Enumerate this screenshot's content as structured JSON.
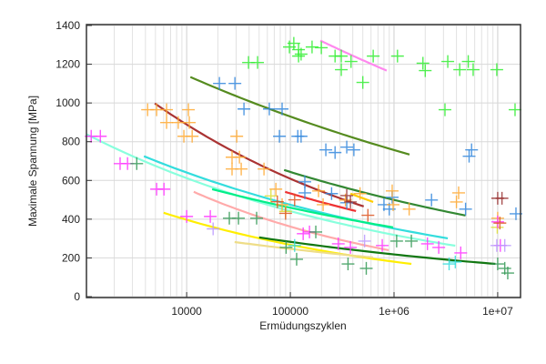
{
  "chart_data": {
    "type": "scatter",
    "xlabel": "Ermüdungszyklen",
    "ylabel": "Maximale Spannung [MPa]",
    "xscale": "log",
    "xlim": [
      1080,
      16600000
    ],
    "ylim": [
      0,
      1400
    ],
    "grid": true,
    "x_ticks": [
      {
        "value": 10000,
        "label": "10000"
      },
      {
        "value": 100000,
        "label": "100000"
      },
      {
        "value": 1000000,
        "label": "1e+06"
      },
      {
        "value": 10000000,
        "label": "1e+07"
      }
    ],
    "y_ticks": [
      {
        "value": 0,
        "label": "0"
      },
      {
        "value": 200,
        "label": "200"
      },
      {
        "value": 400,
        "label": "400"
      },
      {
        "value": 600,
        "label": "600"
      },
      {
        "value": 800,
        "label": "800"
      },
      {
        "value": 1000,
        "label": "1000"
      },
      {
        "value": 1200,
        "label": "1200"
      },
      {
        "value": 1400,
        "label": "1400"
      }
    ],
    "point_series": [
      {
        "color": "#33ee33",
        "points": [
          [
            39500,
            1209
          ],
          [
            48300,
            1209
          ],
          [
            98000,
            1289
          ],
          [
            108000,
            1308
          ],
          [
            120000,
            1275
          ],
          [
            120000,
            1242
          ],
          [
            127000,
            1252
          ],
          [
            162000,
            1289
          ],
          [
            199000,
            1285
          ],
          [
            270000,
            1242
          ],
          [
            310000,
            1242
          ],
          [
            310000,
            1172
          ],
          [
            385000,
            1214
          ],
          [
            500000,
            1106
          ],
          [
            630000,
            1242
          ],
          [
            1080000,
            1242
          ],
          [
            1900000,
            1205
          ],
          [
            2000000,
            1167
          ],
          [
            3300000,
            1214
          ],
          [
            4300000,
            1172
          ],
          [
            5200000,
            1214
          ],
          [
            5800000,
            1172
          ],
          [
            9800000,
            1172
          ],
          [
            3100000,
            965
          ],
          [
            14700000,
            965
          ]
        ]
      },
      {
        "color": "#3388dd",
        "points": [
          [
            20700,
            1101
          ],
          [
            29200,
            1101
          ],
          [
            35700,
            969
          ],
          [
            62700,
            969
          ],
          [
            83300,
            969
          ],
          [
            78500,
            828
          ],
          [
            118000,
            828
          ],
          [
            127000,
            828
          ],
          [
            220000,
            758
          ],
          [
            270000,
            744
          ],
          [
            350000,
            772
          ],
          [
            410000,
            758
          ],
          [
            5600000,
            758
          ],
          [
            5300000,
            725
          ],
          [
            138000,
            593
          ],
          [
            138000,
            536
          ],
          [
            250000,
            532
          ],
          [
            350000,
            485
          ],
          [
            800000,
            475
          ],
          [
            960000,
            513
          ],
          [
            900000,
            452
          ],
          [
            2300000,
            499
          ],
          [
            4900000,
            452
          ],
          [
            15000000,
            428
          ]
        ]
      },
      {
        "color": "#ffaa33",
        "points": [
          [
            4200,
            965
          ],
          [
            5130,
            965
          ],
          [
            6400,
            965
          ],
          [
            10400,
            965
          ],
          [
            6400,
            899
          ],
          [
            8300,
            899
          ],
          [
            10600,
            899
          ],
          [
            9400,
            828
          ],
          [
            11300,
            828
          ],
          [
            30400,
            828
          ],
          [
            27400,
            720
          ],
          [
            32300,
            720
          ],
          [
            27400,
            659
          ],
          [
            33600,
            659
          ],
          [
            55700,
            659
          ],
          [
            72500,
            555
          ],
          [
            83300,
            475
          ],
          [
            187000,
            546
          ],
          [
            207000,
            475
          ],
          [
            340000,
            499
          ],
          [
            470000,
            532
          ],
          [
            960000,
            546
          ],
          [
            980000,
            475
          ],
          [
            1400000,
            452
          ],
          [
            4000000,
            489
          ],
          [
            4200000,
            536
          ],
          [
            10000000,
            405
          ]
        ]
      },
      {
        "color": "#dddd33",
        "points": [
          [
            9900000,
            358
          ],
          [
            90000,
            440
          ],
          [
            65000,
            520
          ]
        ]
      },
      {
        "color": "#ff33ff",
        "points": [
          [
            1200,
            828
          ],
          [
            1470,
            828
          ],
          [
            2280,
            687
          ],
          [
            2690,
            687
          ],
          [
            5130,
            555
          ],
          [
            6040,
            555
          ],
          [
            10000,
            414
          ],
          [
            16900,
            414
          ],
          [
            133000,
            325
          ],
          [
            153000,
            334
          ],
          [
            290000,
            273
          ],
          [
            380000,
            254
          ],
          [
            770000,
            264
          ],
          [
            2100000,
            273
          ],
          [
            2700000,
            254
          ],
          [
            4400000,
            226
          ],
          [
            10000000,
            386
          ],
          [
            10600000,
            264
          ]
        ]
      },
      {
        "color": "#339955",
        "points": [
          [
            3300,
            687
          ],
          [
            25800,
            405
          ],
          [
            31600,
            405
          ],
          [
            47300,
            405
          ],
          [
            91000,
            254
          ],
          [
            115000,
            193
          ],
          [
            176000,
            334
          ],
          [
            360000,
            169
          ],
          [
            540000,
            146
          ],
          [
            1060000,
            287
          ],
          [
            1470000,
            287
          ],
          [
            10000000,
            169
          ],
          [
            11700000,
            146
          ],
          [
            12500000,
            122
          ]
        ]
      },
      {
        "color": "#993333",
        "points": [
          [
            10000000,
            508
          ],
          [
            11000000,
            508
          ],
          [
            380000,
            489
          ],
          [
            350000,
            522
          ]
        ]
      },
      {
        "color": "#dd5522",
        "points": [
          [
            75000,
            490
          ],
          [
            90000,
            430
          ],
          [
            110000,
            500
          ],
          [
            560000,
            420
          ],
          [
            10500000,
            380
          ]
        ]
      },
      {
        "color": "#33dddd",
        "points": [
          [
            110000,
            264
          ],
          [
            3400000,
            169
          ],
          [
            3900000,
            179
          ]
        ]
      },
      {
        "color": "#bb99ff",
        "points": [
          [
            9800000,
            264
          ],
          [
            11700000,
            264
          ],
          [
            520000,
            287
          ],
          [
            18000,
            350
          ]
        ]
      }
    ],
    "fit_curves": [
      {
        "color": "#558b1f",
        "from": [
          10850,
          1134
        ],
        "to": [
          1410000,
          734
        ]
      },
      {
        "color": "#aa3333",
        "from": [
          4930,
          998
        ],
        "to": [
          510000,
          466
        ]
      },
      {
        "color": "#ee3333",
        "from": [
          89000,
          541
        ],
        "to": [
          430000,
          442
        ]
      },
      {
        "color": "#ff88ee",
        "from": [
          195000,
          1322
        ],
        "to": [
          850000,
          1167
        ]
      },
      {
        "color": "#338833",
        "from": [
          87000,
          654
        ],
        "to": [
          4900000,
          419
        ]
      },
      {
        "color": "#88ffdd",
        "from": [
          1085,
          838
        ],
        "to": [
          3900000,
          263
        ]
      },
      {
        "color": "#33dddd",
        "from": [
          3870,
          725
        ],
        "to": [
          3300000,
          301
        ]
      },
      {
        "color": "#00ee88",
        "from": [
          17600,
          555
        ],
        "to": [
          980000,
          358
        ]
      },
      {
        "color": "#ffaaaa",
        "from": [
          11700,
          541
        ],
        "to": [
          890000,
          240
        ]
      },
      {
        "color": "#ffee00",
        "from": [
          6000,
          433
        ],
        "to": [
          1470000,
          169
        ]
      },
      {
        "color": "#eedd88",
        "from": [
          29000,
          282
        ],
        "to": [
          630000,
          202
        ]
      },
      {
        "color": "#117711",
        "from": [
          50000,
          306
        ],
        "to": [
          9500000,
          169
        ]
      },
      {
        "color": "#ffcc00",
        "from": [
          380000,
          532
        ],
        "to": [
          630000,
          489
        ]
      }
    ]
  }
}
